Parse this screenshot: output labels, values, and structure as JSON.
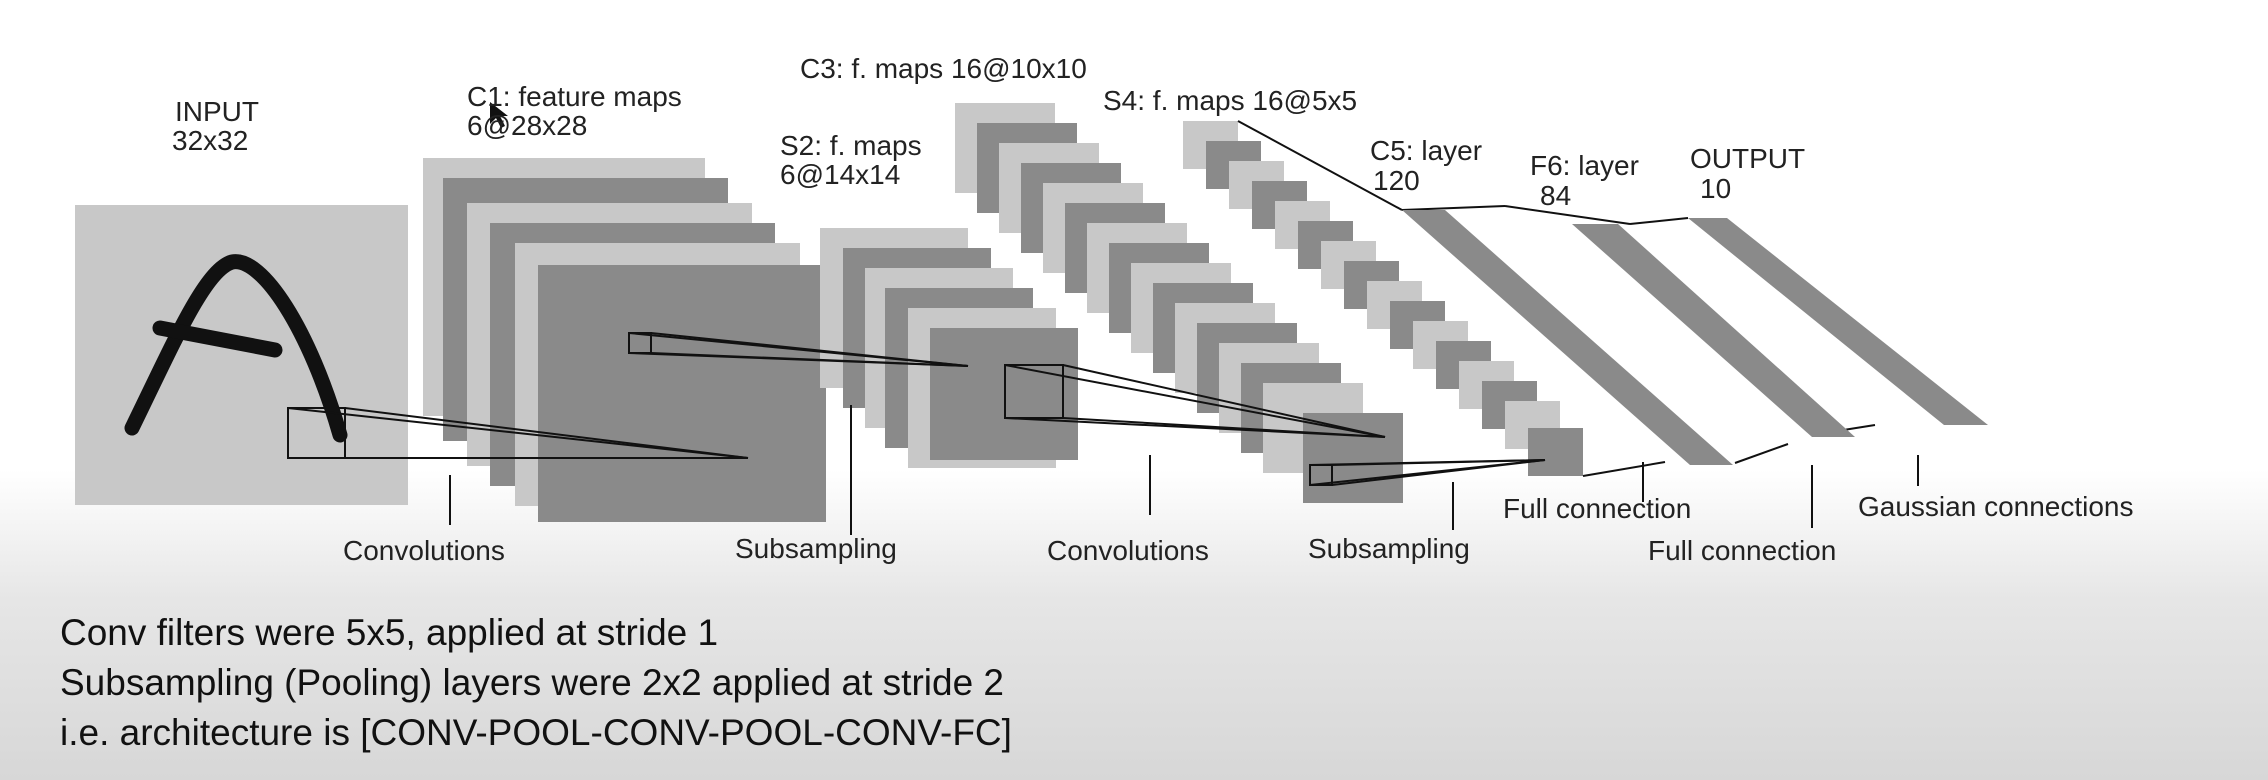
{
  "layers": {
    "input": {
      "name": "INPUT",
      "size": "32x32"
    },
    "c1": {
      "name": "C1: feature maps",
      "size": "6@28x28"
    },
    "s2": {
      "name": "S2: f. maps",
      "size": "6@14x14"
    },
    "c3": {
      "name": "C3: f. maps 16@10x10"
    },
    "s4": {
      "name": "S4: f. maps 16@5x5"
    },
    "c5": {
      "name": "C5: layer",
      "size": "120"
    },
    "f6": {
      "name": "F6: layer",
      "size": "84"
    },
    "output": {
      "name": "OUTPUT",
      "size": "10"
    }
  },
  "operations": {
    "conv1": "Convolutions",
    "sub1": "Subsampling",
    "conv2": "Convolutions",
    "sub2": "Subsampling",
    "full1": "Full connection",
    "full2": "Full connection",
    "gauss": "Gaussian connections"
  },
  "notes": {
    "line1": "Conv filters were 5x5, applied at stride 1",
    "line2": "Subsampling (Pooling) layers were 2x2 applied at stride 2",
    "line3": "i.e. architecture is [CONV-POOL-CONV-POOL-CONV-FC]"
  },
  "colors": {
    "dark": "#8a8a8a",
    "light": "#c8c8c8",
    "stroke": "#111111"
  }
}
